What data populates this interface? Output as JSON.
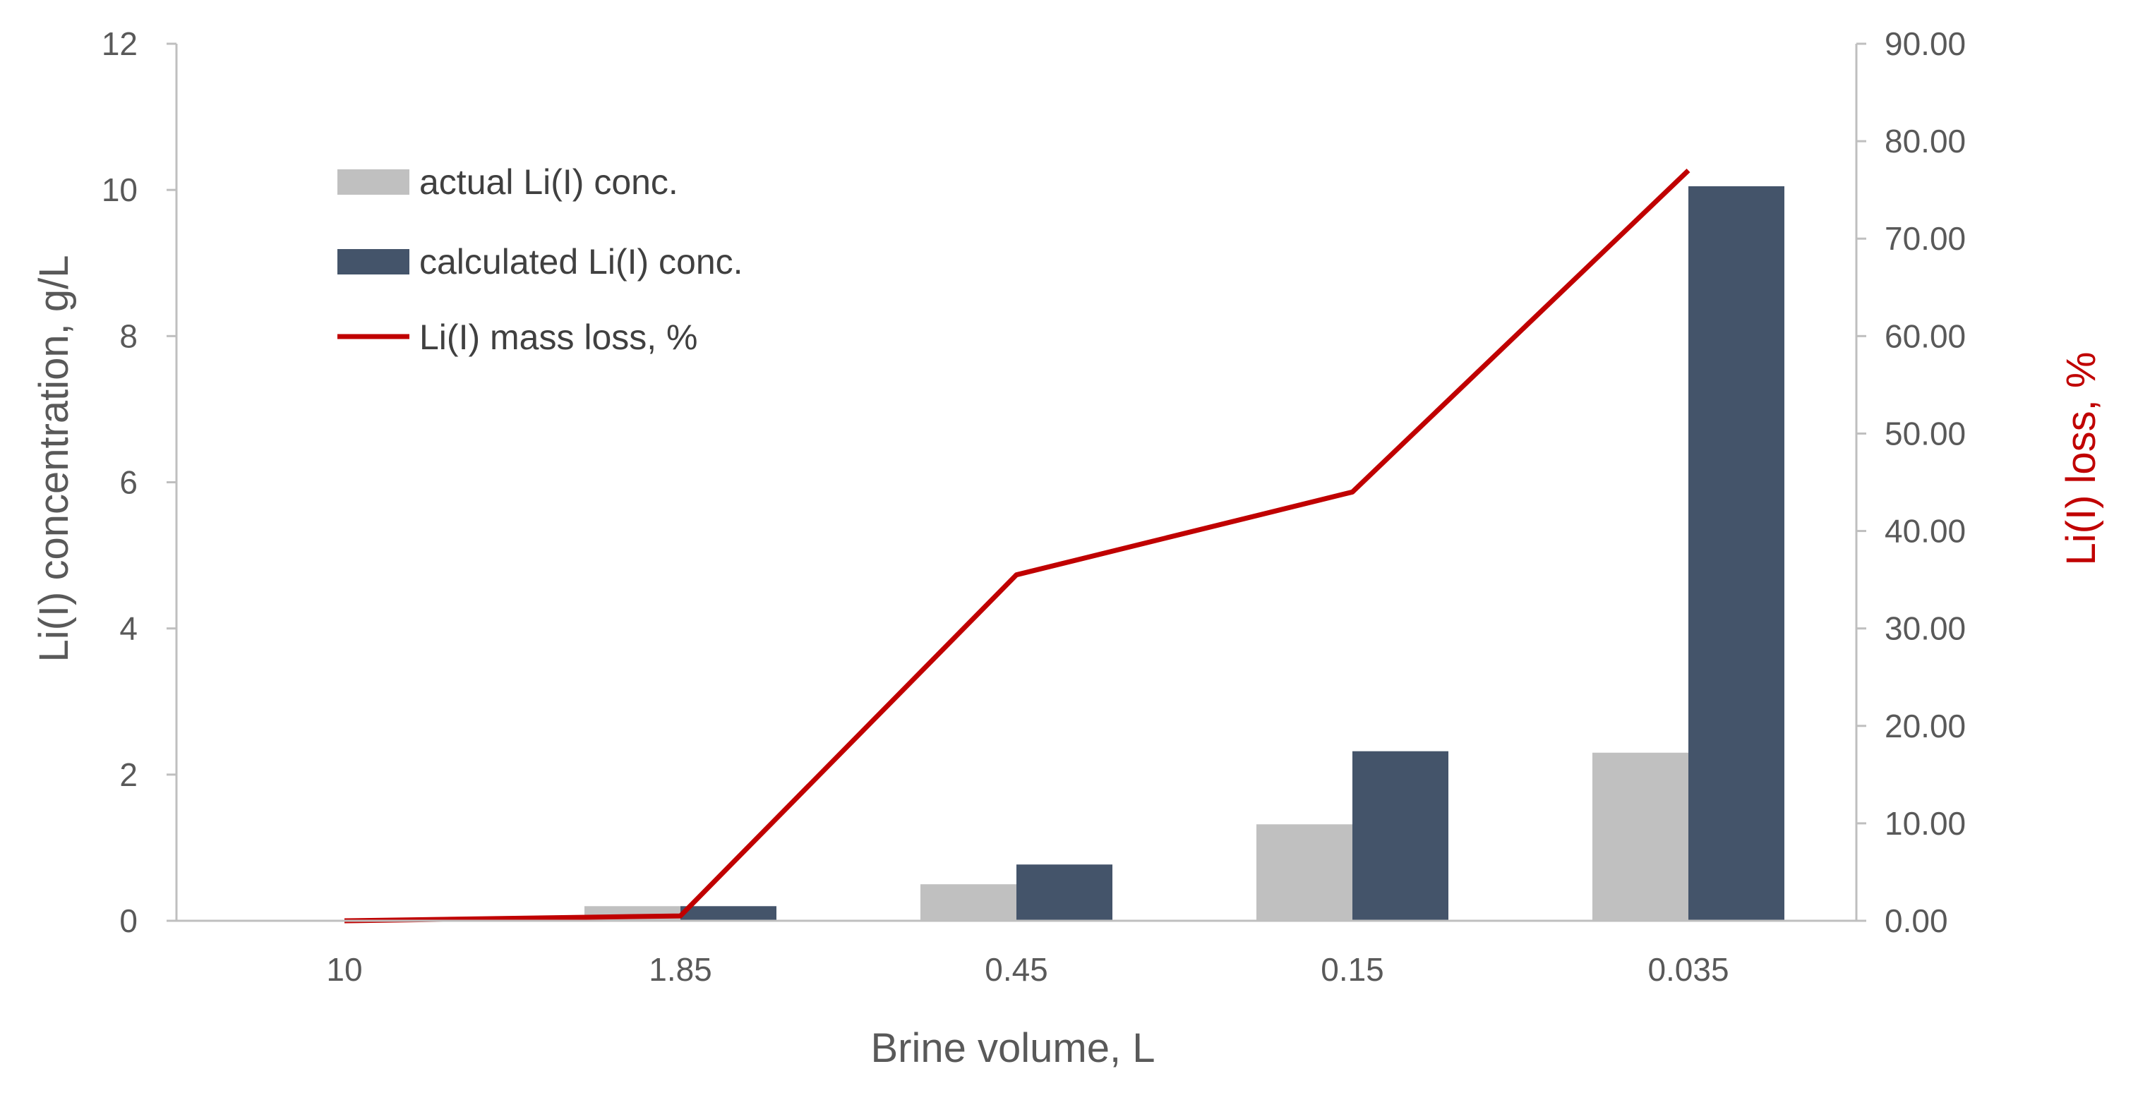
{
  "chart_data": {
    "type": "bar",
    "categories": [
      "10",
      "1.85",
      "0.45",
      "0.15",
      "0.035"
    ],
    "xlabel": "Brine volume, L",
    "ylabel": "Li(I) concentration, g/L",
    "y2label": "Li(I) loss, %",
    "ylim": [
      0,
      12
    ],
    "y2lim": [
      0,
      90
    ],
    "yticks": [
      "0",
      "2",
      "4",
      "6",
      "8",
      "10",
      "12"
    ],
    "y2ticks": [
      "0.00",
      "10.00",
      "20.00",
      "30.00",
      "40.00",
      "50.00",
      "60.00",
      "70.00",
      "80.00",
      "90.00"
    ],
    "grid": false,
    "legend_position": "top-left",
    "series": [
      {
        "name": "actual Li(I) conc.",
        "type": "bar",
        "axis": "left",
        "color": "#c0c0c0",
        "values": [
          0,
          0.2,
          0.5,
          1.32,
          2.3
        ]
      },
      {
        "name": "calculated Li(I) conc.",
        "type": "bar",
        "axis": "left",
        "color": "#44546a",
        "values": [
          0,
          0.2,
          0.77,
          2.32,
          10.05
        ]
      },
      {
        "name": "Li(I) mass loss, %",
        "type": "line",
        "axis": "right",
        "color": "#c00000",
        "values": [
          0,
          0.5,
          35.5,
          44,
          77
        ]
      }
    ]
  }
}
